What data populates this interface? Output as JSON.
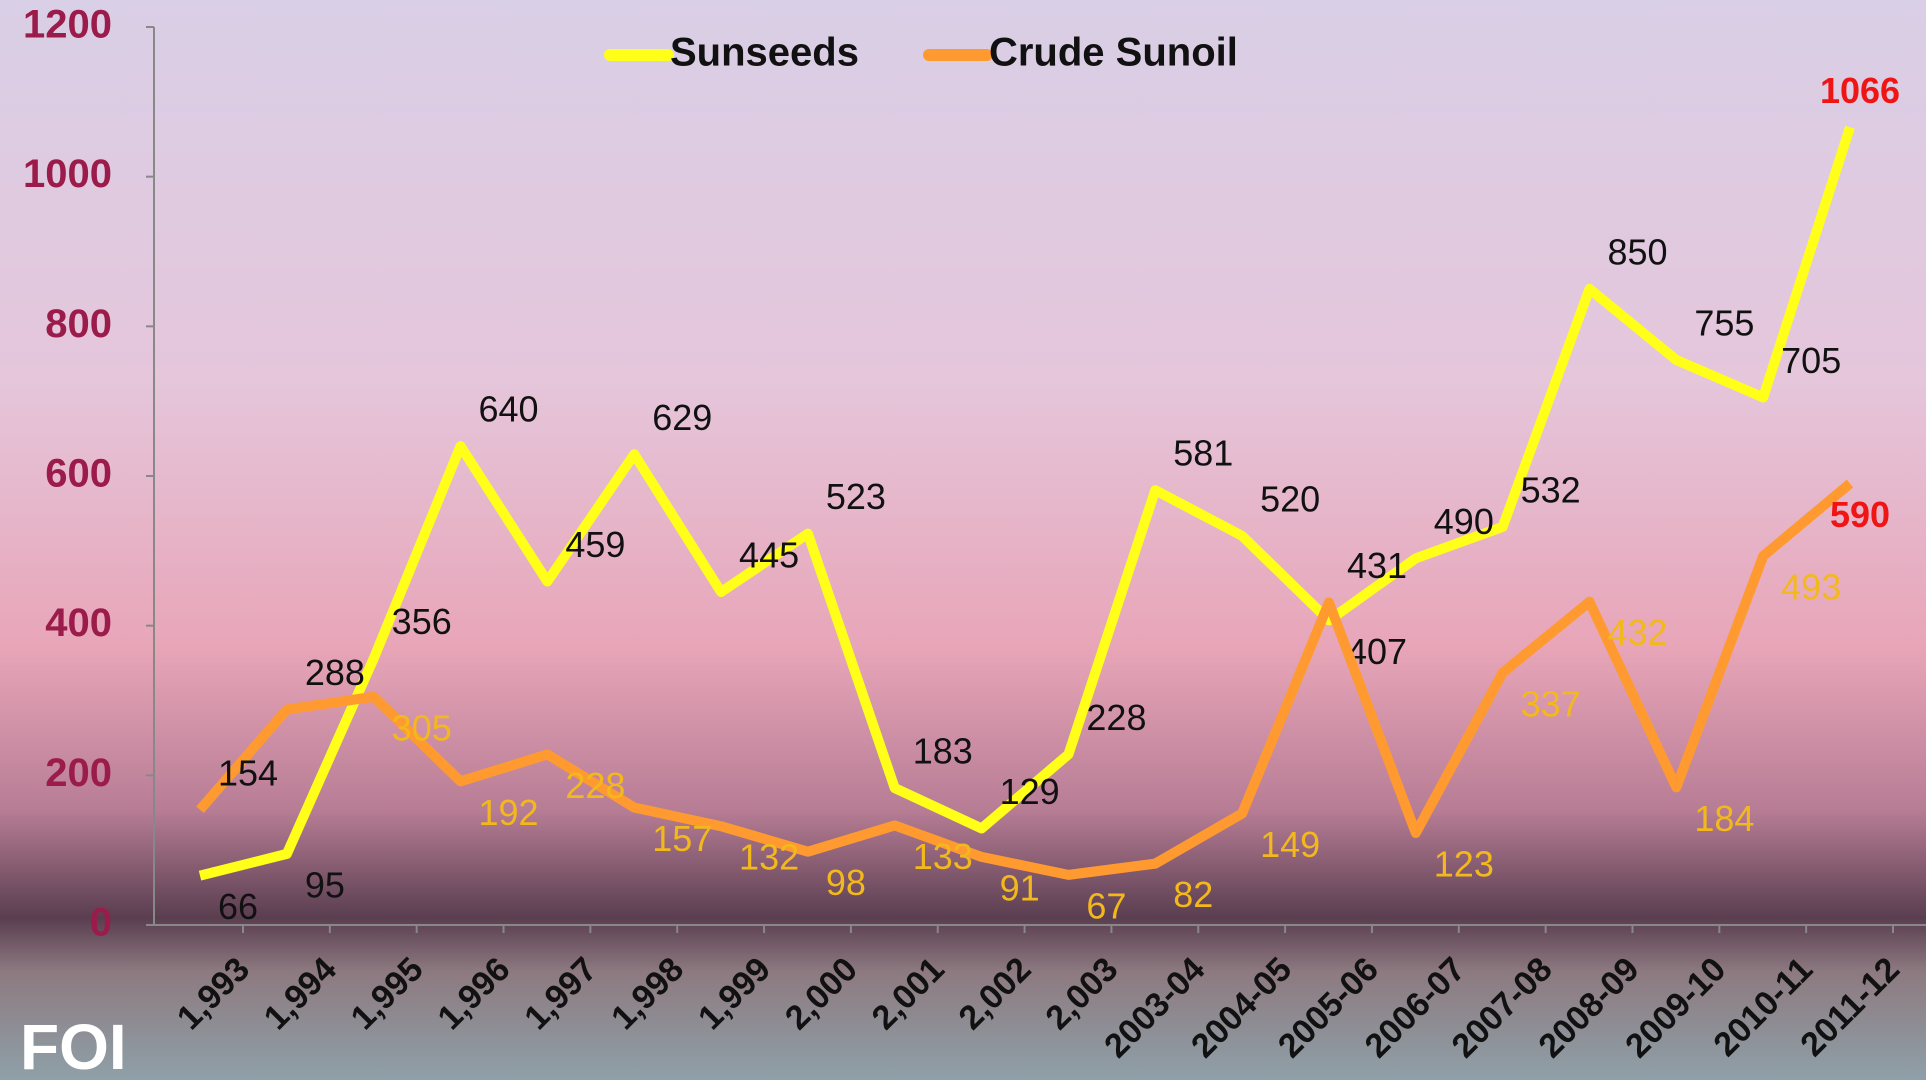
{
  "chart_data": {
    "type": "line",
    "categories": [
      "1,993",
      "1,994",
      "1,995",
      "1,996",
      "1,997",
      "1,998",
      "1,999",
      "2,000",
      "2,001",
      "2,002",
      "2,003",
      "2003-04",
      "2004-05",
      "2005-06",
      "2006-07",
      "2007-08",
      "2008-09",
      "2009-10",
      "2010-11",
      "2011-12"
    ],
    "series": [
      {
        "name": "Sunseeds",
        "color": "#ffff1a",
        "values": [
          66,
          95,
          356,
          640,
          459,
          629,
          445,
          523,
          183,
          129,
          228,
          581,
          520,
          407,
          490,
          532,
          850,
          755,
          705,
          1066
        ]
      },
      {
        "name": "Crude Sunoil",
        "color": "#ff9a30",
        "values": [
          154,
          288,
          305,
          192,
          228,
          157,
          132,
          98,
          133,
          91,
          67,
          82,
          149,
          431,
          123,
          337,
          432,
          184,
          493,
          590
        ]
      }
    ],
    "ylim": [
      0,
      1200
    ],
    "yticks": [
      0,
      200,
      400,
      600,
      800,
      1000,
      1200
    ],
    "legend": "top",
    "logo": "FOI"
  }
}
